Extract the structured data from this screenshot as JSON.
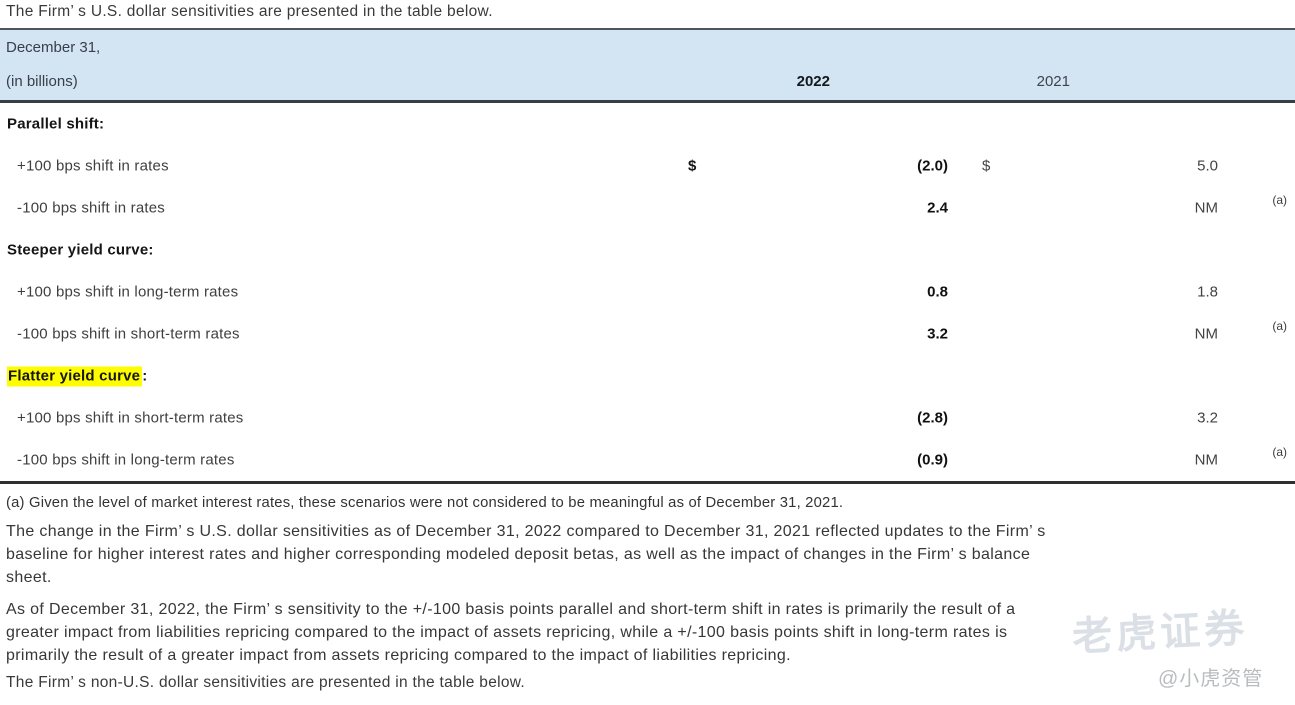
{
  "intro": "The Firm’ s U.S. dollar sensitivities are presented in the table below.",
  "table": {
    "header": {
      "date_line": "December 31,",
      "unit_line": "(in billions)",
      "col_2022": "2022",
      "col_2021": "2021"
    },
    "rows": [
      {
        "type": "category",
        "label": "Parallel shift:"
      },
      {
        "type": "data",
        "label": "+100 bps shift in rates",
        "d2022": "$",
        "v2022": "(2.0)",
        "d2021": "$",
        "v2021": "5.0",
        "note": ""
      },
      {
        "type": "data",
        "label": "-100 bps shift in rates",
        "d2022": "",
        "v2022": "2.4",
        "d2021": "",
        "v2021": "NM",
        "note": "(a)"
      },
      {
        "type": "category",
        "label": "Steeper yield curve:"
      },
      {
        "type": "data",
        "label": "+100 bps shift in long-term rates",
        "d2022": "",
        "v2022": "0.8",
        "d2021": "",
        "v2021": "1.8",
        "note": ""
      },
      {
        "type": "data",
        "label": "-100 bps shift in short-term rates",
        "d2022": "",
        "v2022": "3.2",
        "d2021": "",
        "v2021": "NM",
        "note": "(a)"
      },
      {
        "type": "category",
        "label": "Flatter yield curve",
        "suffix": ":",
        "highlighted": true
      },
      {
        "type": "data",
        "label": "+100 bps shift in short-term rates",
        "d2022": "",
        "v2022": "(2.8)",
        "d2021": "",
        "v2021": "3.2",
        "note": ""
      },
      {
        "type": "data",
        "label": "-100 bps shift in long-term rates",
        "d2022": "",
        "v2022": "(0.9)",
        "d2021": "",
        "v2021": "NM",
        "note": "(a)"
      }
    ]
  },
  "footnote": "(a) Given the level of market interest rates, these scenarios were not considered to be meaningful as of December 31, 2021.",
  "paragraphs": {
    "p1_lines": [
      "The change in the Firm’ s U.S. dollar sensitivities as of December 31, 2022 compared to December 31, 2021 reflected updates to the Firm’ s",
      "baseline for higher interest rates and higher corresponding modeled deposit betas, as well as the impact of changes in the Firm’ s balance",
      "sheet."
    ],
    "p2_lines": [
      "As of December 31, 2022, the Firm’ s sensitivity to the +/-100 basis points parallel and short-term shift in rates is primarily the result of a",
      "greater impact from liabilities repricing compared to the impact of assets repricing, while a +/-100 basis points shift in long-term rates is",
      "primarily the result of a greater impact from assets repricing compared to the impact of liabilities repricing."
    ],
    "closing": "The Firm’ s non-U.S. dollar sensitivities are presented in the table below."
  },
  "watermark": {
    "ghost": "老虎证券",
    "handle": "@小虎资管"
  },
  "colors": {
    "header_bg": "#d3e4f2",
    "highlight": "#fdfd00",
    "body_text": "#3d3d3d"
  }
}
